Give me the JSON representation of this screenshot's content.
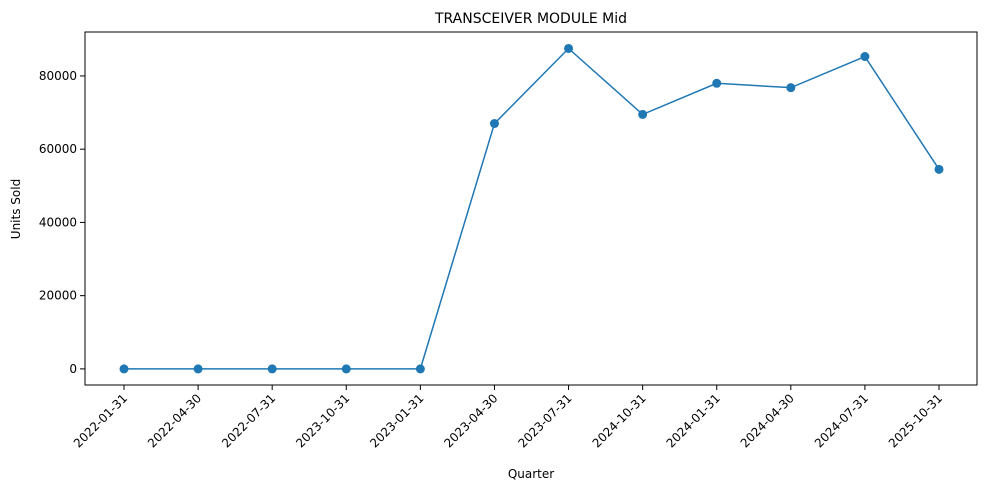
{
  "chart_data": {
    "type": "line",
    "title": "TRANSCEIVER MODULE Mid",
    "xlabel": "Quarter",
    "ylabel": "Units Sold",
    "categories": [
      "2022-01-31",
      "2022-04-30",
      "2022-07-31",
      "2023-10-31",
      "2023-01-31",
      "2023-04-30",
      "2023-07-31",
      "2024-10-31",
      "2024-01-31",
      "2024-04-30",
      "2024-07-31",
      "2025-10-31"
    ],
    "series": [
      {
        "color": "#1f77b4",
        "marker": "circle",
        "values": [
          0,
          0,
          0,
          0,
          0,
          67000,
          87500,
          69500,
          78000,
          76800,
          85300,
          54500
        ]
      }
    ],
    "ylim": [
      -4400,
      92000
    ],
    "yticks": [
      0,
      20000,
      40000,
      60000,
      80000
    ],
    "grid": false,
    "legend": "none"
  }
}
